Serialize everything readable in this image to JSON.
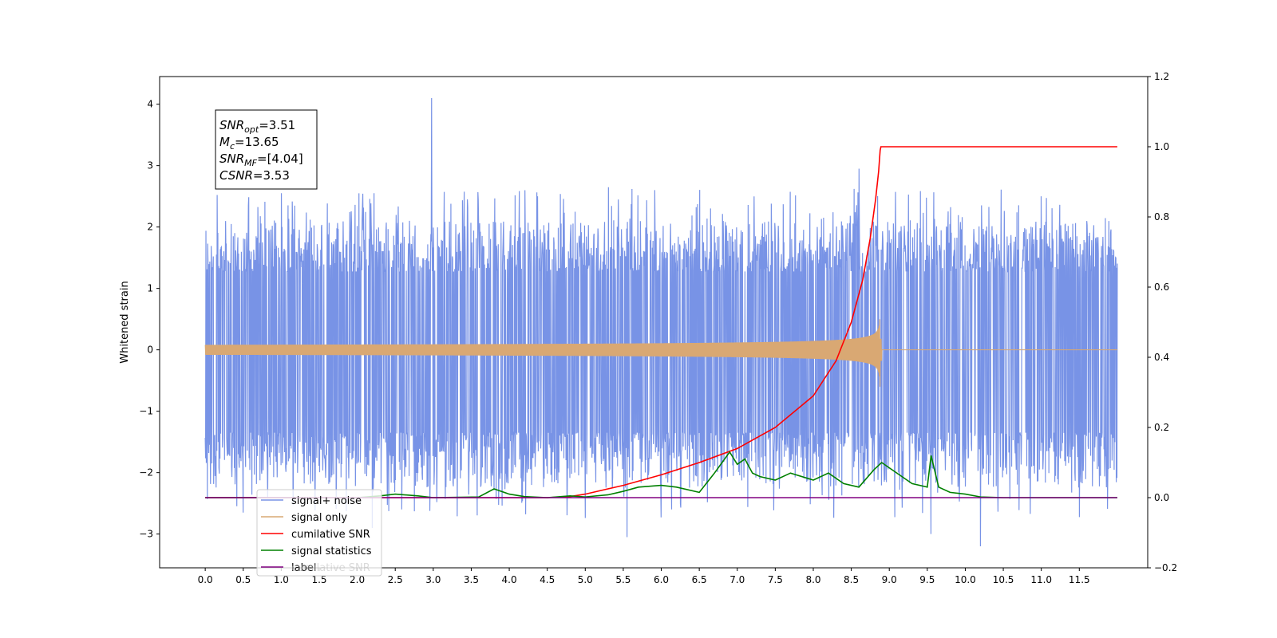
{
  "chart_data": {
    "type": "line",
    "xlabel": "",
    "ylabel": "Whitened strain",
    "xlim": [
      -0.6,
      12.4
    ],
    "ylim": [
      -3.55,
      4.45
    ],
    "y2lim": [
      -0.2,
      1.2
    ],
    "x_ticks": [
      "0.0",
      "0.5",
      "1.0",
      "1.5",
      "2.0",
      "2.5",
      "3.0",
      "3.5",
      "4.0",
      "4.5",
      "5.0",
      "5.5",
      "6.0",
      "6.5",
      "7.0",
      "7.5",
      "8.0",
      "8.5",
      "9.0",
      "9.5",
      "10.0",
      "10.5",
      "11.0",
      "11.5"
    ],
    "y_ticks": [
      "4",
      "3",
      "2",
      "1",
      "0",
      "−1",
      "−2",
      "−3"
    ],
    "y2_ticks": [
      "1.2",
      "1.0",
      "0.8",
      "0.6",
      "0.4",
      "0.2",
      "0.0",
      "−0.2"
    ],
    "grid": false,
    "legend_position": "lower-left",
    "annotation": {
      "lines": [
        {
          "base": "SNR",
          "sub": "opt",
          "value": "=3.51"
        },
        {
          "base": "M",
          "sub": "c",
          "value": "=13.65"
        },
        {
          "base": "SNR",
          "sub": "MF",
          "value": "=[4.04]"
        },
        {
          "base": "CSNR",
          "sub": "",
          "value": "=3.53"
        }
      ]
    },
    "series": [
      {
        "name": "signal+ noise",
        "color": "#7893e6",
        "axis": "left",
        "x_range": [
          0.0,
          12.0
        ],
        "envelope_upper": 1.7,
        "envelope_lower": -1.8,
        "spikes": [
          [
            2.98,
            4.1
          ],
          [
            5.55,
            -3.05
          ],
          [
            10.2,
            -3.2
          ],
          [
            0.5,
            -2.65
          ],
          [
            9.55,
            -3.0
          ],
          [
            2.2,
            -2.9
          ],
          [
            2.22,
            2.55
          ],
          [
            1.0,
            2.55
          ],
          [
            11.0,
            2.5
          ],
          [
            8.6,
            2.95
          ]
        ]
      },
      {
        "name": "signal only",
        "color": "#d9a873",
        "axis": "left",
        "x_range": [
          0.0,
          12.0
        ],
        "merger_time": 8.88,
        "peak_amplitude": 0.6
      },
      {
        "name": "cumilative SNR",
        "color": "#ff0000",
        "axis": "right",
        "x": [
          0.0,
          4.5,
          4.8,
          5.0,
          5.5,
          6.0,
          6.5,
          7.0,
          7.5,
          8.0,
          8.3,
          8.5,
          8.65,
          8.75,
          8.82,
          8.86,
          8.88,
          8.89,
          12.0
        ],
        "values": [
          0.0,
          0.0,
          0.003,
          0.01,
          0.035,
          0.065,
          0.1,
          0.14,
          0.2,
          0.29,
          0.39,
          0.5,
          0.62,
          0.74,
          0.85,
          0.93,
          0.99,
          1.0,
          1.0
        ]
      },
      {
        "name": "signal statistics",
        "color": "#008000",
        "axis": "right",
        "x": [
          0.0,
          2.0,
          2.3,
          2.5,
          2.8,
          3.0,
          3.6,
          3.8,
          4.0,
          4.2,
          4.5,
          4.8,
          5.0,
          5.3,
          5.5,
          5.7,
          6.0,
          6.2,
          6.5,
          6.7,
          6.8,
          6.9,
          7.0,
          7.1,
          7.2,
          7.3,
          7.5,
          7.7,
          8.0,
          8.2,
          8.4,
          8.6,
          8.8,
          8.9,
          9.0,
          9.3,
          9.5,
          9.55,
          9.65,
          9.8,
          10.0,
          10.2,
          10.5,
          11.0,
          11.5,
          12.0
        ],
        "values": [
          0.0,
          0.0,
          0.005,
          0.01,
          0.005,
          0.0,
          0.002,
          0.025,
          0.01,
          0.003,
          0.0,
          0.005,
          0.002,
          0.008,
          0.018,
          0.03,
          0.035,
          0.03,
          0.015,
          0.07,
          0.1,
          0.13,
          0.095,
          0.11,
          0.07,
          0.06,
          0.05,
          0.07,
          0.05,
          0.07,
          0.04,
          0.03,
          0.08,
          0.1,
          0.085,
          0.04,
          0.03,
          0.12,
          0.03,
          0.015,
          0.01,
          0.002,
          0.0,
          0.0,
          0.0,
          0.0
        ]
      },
      {
        "name": "label",
        "color": "#800080",
        "axis": "right",
        "x": [
          0.0,
          12.0
        ],
        "values": [
          0.0,
          0.0
        ]
      }
    ],
    "legend_ghost_label": "cumilative SNR"
  }
}
